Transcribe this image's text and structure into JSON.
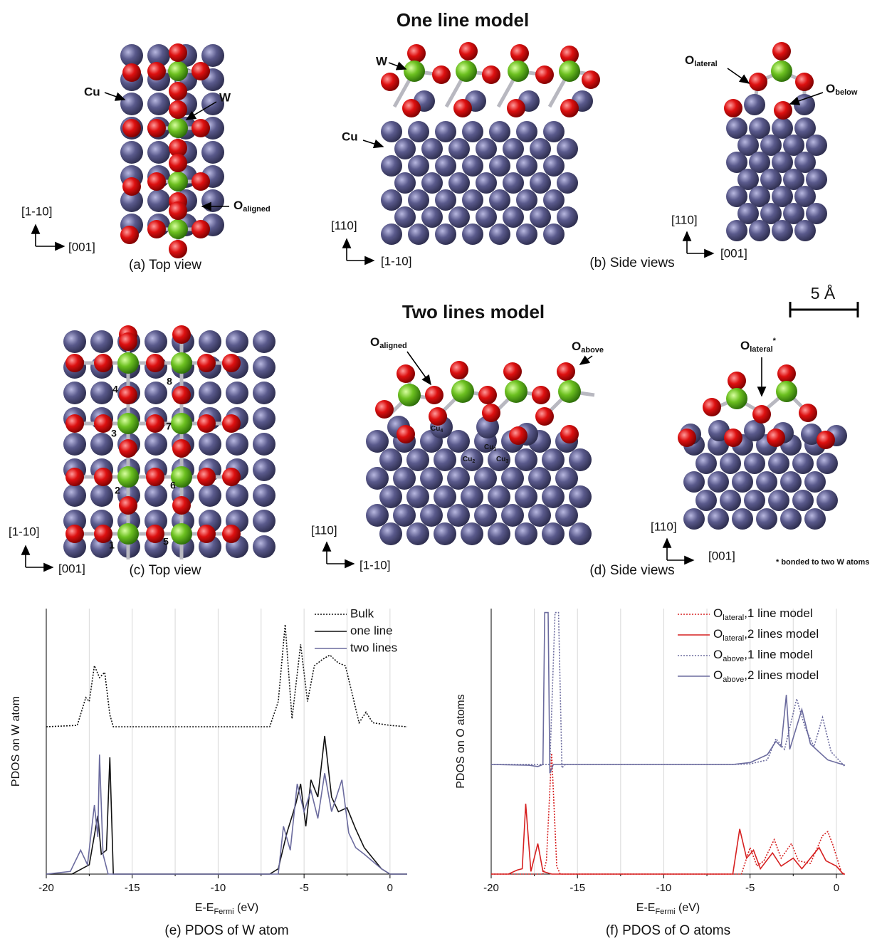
{
  "structures": {
    "title_one": "One line model",
    "title_two": "Two lines model",
    "scale_bar": "5 Å",
    "footnote": "* bonded to two W atoms",
    "a": {
      "caption": "(a) Top view",
      "axis_up": "[1-10]",
      "axis_right": "[001]",
      "label_cu": "Cu",
      "label_w": "W",
      "label_o": {
        "main": "O",
        "sub": "aligned"
      }
    },
    "b": {
      "caption": "(b) Side views",
      "left_axis_up": "[110]",
      "left_axis_right": "[1-10]",
      "right_axis_up": "[110]",
      "right_axis_right": "[001]",
      "label_w": "W",
      "label_cu": "Cu",
      "label_o_lateral": {
        "main": "O",
        "sub": "lateral"
      },
      "label_o_below": {
        "main": "O",
        "sub": "below"
      }
    },
    "c": {
      "caption": "(c) Top view",
      "axis_up": "[1-10]",
      "axis_right": "[001]",
      "numbers": [
        "1",
        "2",
        "3",
        "4",
        "5",
        "6",
        "7",
        "8"
      ]
    },
    "d": {
      "caption": "(d) Side views",
      "left_axis_up": "[110]",
      "left_axis_right": "[1-10]",
      "right_axis_up": "[110]",
      "right_axis_right": "[001]",
      "label_o_aligned": {
        "main": "O",
        "sub": "aligned"
      },
      "label_o_above": {
        "main": "O",
        "sub": "above"
      },
      "label_o_lateral": {
        "main": "O",
        "sub": "lateral",
        "sup": "*"
      },
      "cu_labels": [
        {
          "main": "Cu",
          "sub": "4"
        },
        {
          "main": "Cu",
          "sub": "1"
        },
        {
          "main": "Cu",
          "sub": "2"
        },
        {
          "main": "Cu",
          "sub": "3"
        }
      ]
    }
  },
  "chart_data": [
    {
      "type": "line",
      "caption": "(e) PDOS of W atom",
      "ylabel": "PDOS on W atom",
      "xlabel": {
        "main": "E-E",
        "sub": "Fermi",
        "tail": " (eV)"
      },
      "xlim": [
        -20,
        1
      ],
      "xticks": [
        -20,
        -15,
        -10,
        -5,
        0
      ],
      "minor_xticks": [
        -17.5,
        -12.5,
        -7.5,
        -2.5
      ],
      "ylim": [
        0,
        10
      ],
      "grid": true,
      "legend": "upper right",
      "series": [
        {
          "name": "Bulk",
          "color": "#111111",
          "dash": "dotted",
          "x": [
            -20,
            -18.2,
            -17.7,
            -17.5,
            -17.2,
            -16.9,
            -16.6,
            -16.3,
            -16.1,
            -15.5,
            -7,
            -6.5,
            -6.1,
            -5.7,
            -5.2,
            -4.8,
            -4.4,
            -3.9,
            -3.5,
            -3.0,
            -2.6,
            -2.2,
            -1.8,
            -1.4,
            -1.0,
            0,
            1
          ],
          "values": [
            5.55,
            5.6,
            6.65,
            6.5,
            7.85,
            7.4,
            7.6,
            6.0,
            5.55,
            5.55,
            5.55,
            6.5,
            9.4,
            5.85,
            8.65,
            6.5,
            7.85,
            8.1,
            8.25,
            7.95,
            7.85,
            6.8,
            5.7,
            6.1,
            5.7,
            5.6,
            5.55
          ]
        },
        {
          "name": "one line",
          "color": "#111111",
          "dash": "solid",
          "x": [
            -20,
            -18.5,
            -17.5,
            -17,
            -16.8,
            -16.5,
            -16.3,
            -16.1,
            -15.5,
            -7,
            -6.5,
            -6,
            -5.5,
            -5.2,
            -4.9,
            -4.6,
            -4.2,
            -3.8,
            -3.4,
            -3.0,
            -2.5,
            -2,
            -1.5,
            -1,
            -0.5,
            0,
            1
          ],
          "values": [
            0,
            0,
            0.35,
            2.2,
            0.75,
            0.9,
            4.4,
            0,
            0,
            0,
            0.2,
            1.55,
            2.6,
            3.4,
            1.8,
            3.55,
            2.9,
            5.2,
            2.9,
            2.35,
            2.5,
            1.7,
            1.0,
            0.6,
            0.2,
            0,
            0
          ]
        },
        {
          "name": "two lines",
          "color": "#6b6b9e",
          "dash": "solid",
          "x": [
            -20,
            -18.6,
            -18,
            -17.6,
            -17.2,
            -17,
            -16.9,
            -16.7,
            -16.4,
            -7,
            -6.5,
            -6.2,
            -5.8,
            -5.4,
            -5.0,
            -4.6,
            -4.2,
            -3.8,
            -3.4,
            -2.8,
            -2.4,
            -2,
            -1.5,
            -0.5,
            0,
            1
          ],
          "values": [
            0,
            0.1,
            0.9,
            0.35,
            2.6,
            1.4,
            4.5,
            0.75,
            0,
            0,
            0,
            1.8,
            0.9,
            3.4,
            2.35,
            3.15,
            2.1,
            3.8,
            2.35,
            3.55,
            1.55,
            1.0,
            0.75,
            0.2,
            0,
            0
          ]
        }
      ]
    },
    {
      "type": "line",
      "caption": "(f) PDOS of O atoms",
      "ylabel": "PDOS on O atoms",
      "xlabel": {
        "main": "E-E",
        "sub": "Fermi",
        "tail": " (eV)"
      },
      "xlim": [
        -20,
        0.5
      ],
      "xticks": [
        -20,
        -15,
        -10,
        -5,
        0
      ],
      "minor_xticks": [
        -17.5,
        -12.5,
        -7.5,
        -2.5
      ],
      "ylim": [
        0,
        10
      ],
      "grid": true,
      "legend": "upper right",
      "series": [
        {
          "name": {
            "main": "O",
            "sub": "lateral",
            "tail": ",1 line model"
          },
          "color": "#d62020",
          "dash": "dotted",
          "x": [
            -20,
            -17,
            -16.8,
            -16.5,
            -16.2,
            -16,
            -5.5,
            -5,
            -4.6,
            -4.2,
            -3.6,
            -3.2,
            -2.6,
            -2.2,
            -1.5,
            -0.8,
            -0.5,
            -0.2,
            0.3,
            0.5
          ],
          "values": [
            0,
            0,
            0.5,
            4.55,
            0.3,
            0,
            0,
            1.0,
            0.3,
            0.5,
            1.3,
            0.6,
            1.15,
            0.5,
            0.4,
            1.45,
            1.6,
            1.1,
            0.05,
            0
          ]
        },
        {
          "name": {
            "main": "O",
            "sub": "lateral",
            "tail": ",2 lines model"
          },
          "color": "#d62020",
          "dash": "solid",
          "x": [
            -20,
            -19,
            -18.5,
            -18.2,
            -18,
            -17.7,
            -17.3,
            -17,
            -16.5,
            -6,
            -5.6,
            -5.2,
            -4.8,
            -4.4,
            -3.7,
            -3.2,
            -2.5,
            -2,
            -1,
            -0.6,
            0,
            0.4,
            0.5
          ],
          "values": [
            0,
            0,
            0.15,
            0.2,
            2.65,
            0.1,
            1.15,
            0.1,
            0,
            0,
            1.7,
            0.6,
            0.9,
            0.2,
            0.8,
            0.3,
            0.6,
            0.2,
            1.0,
            0.5,
            0.3,
            0,
            0
          ]
        },
        {
          "name": {
            "main": "O",
            "sub": "above",
            "tail": ",1 line model"
          },
          "color": "#6b6b9e",
          "dash": "dotted",
          "x": [
            -20,
            -16.6,
            -16.3,
            -16.1,
            -15.9,
            -15.7,
            -6,
            -5,
            -4,
            -3.5,
            -3,
            -2.3,
            -1.8,
            -1.3,
            -0.8,
            -0.3,
            0.5
          ],
          "values": [
            4.13,
            4.13,
            9.85,
            9.85,
            4.0,
            4.13,
            4.13,
            4.15,
            4.3,
            5.1,
            4.7,
            6.6,
            5.5,
            4.8,
            5.9,
            4.6,
            4.05
          ]
        },
        {
          "name": {
            "main": "O",
            "sub": "above",
            "tail": ",2 lines model"
          },
          "color": "#6b6b9e",
          "dash": "solid",
          "x": [
            -20,
            -17.8,
            -17.3,
            -17,
            -16.9,
            -16.7,
            -16.6,
            -16.4,
            -6,
            -5,
            -4,
            -3.5,
            -3.2,
            -2.9,
            -2.7,
            -2.0,
            -1.5,
            -1,
            -0.5,
            0.5
          ],
          "values": [
            4.13,
            4.1,
            4.05,
            4.13,
            9.85,
            9.85,
            3.8,
            4.13,
            4.13,
            4.2,
            4.5,
            5.0,
            4.8,
            6.75,
            4.7,
            6.2,
            4.9,
            4.6,
            4.3,
            4.1
          ]
        }
      ]
    }
  ]
}
